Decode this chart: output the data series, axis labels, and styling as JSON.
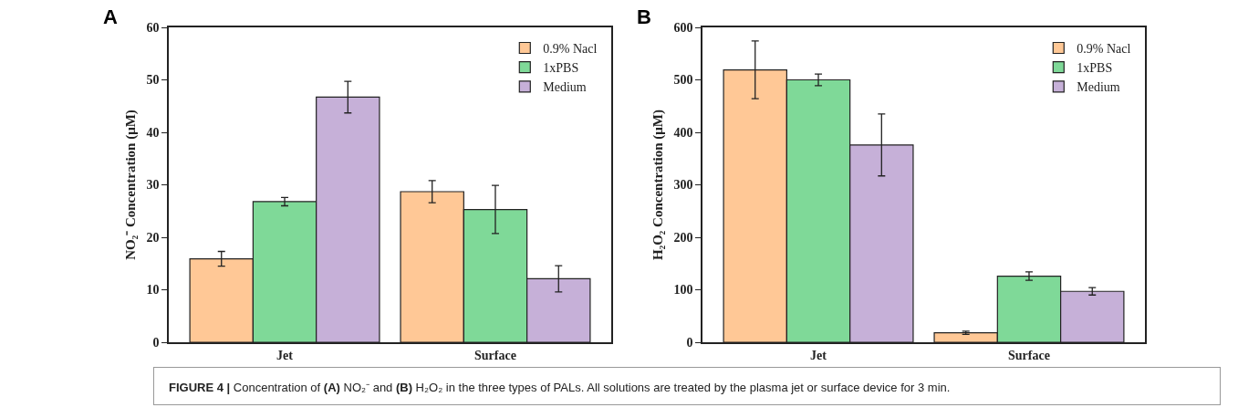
{
  "chart_data": [
    {
      "type": "bar",
      "title": "A",
      "ylabel": "NO₂⁻ Concentration (μM)",
      "categories": [
        "Jet",
        "Surface"
      ],
      "series": [
        {
          "name": "0.9% Nacl",
          "color": "#ffc896",
          "values": [
            15.9,
            28.7
          ],
          "errors": [
            1.4,
            2.1
          ]
        },
        {
          "name": "1xPBS",
          "color": "#7fd998",
          "values": [
            26.8,
            25.3
          ],
          "errors": [
            0.8,
            4.6
          ]
        },
        {
          "name": "Medium",
          "color": "#c6b0d8",
          "values": [
            46.7,
            12.1
          ],
          "errors": [
            3,
            2.5
          ]
        }
      ],
      "ylim": [
        0,
        60
      ],
      "yticks": [
        0,
        10,
        20,
        30,
        40,
        50,
        60
      ],
      "grid": false,
      "legend": "top right",
      "annotations": [
        "FIGURE 4 | Concentration of (A) NO₂⁻ and (B) H₂O₂ in the three types of PALs. All solutions are treated by the plasma jet or surface device for 3 min."
      ]
    },
    {
      "type": "bar",
      "title": "B",
      "ylabel": "H₂O₂ Concentration (μM)",
      "categories": [
        "Jet",
        "Surface"
      ],
      "series": [
        {
          "name": "0.9% Nacl",
          "color": "#ffc896",
          "values": [
            519,
            18
          ],
          "errors": [
            55,
            3
          ]
        },
        {
          "name": "1xPBS",
          "color": "#7fd998",
          "values": [
            500,
            126
          ],
          "errors": [
            11,
            8
          ]
        },
        {
          "name": "Medium",
          "color": "#c6b0d8",
          "values": [
            376,
            97
          ],
          "errors": [
            59,
            7
          ]
        }
      ],
      "ylim": [
        0,
        600
      ],
      "yticks": [
        0,
        100,
        200,
        300,
        400,
        500,
        600
      ],
      "grid": false,
      "legend": "top right"
    }
  ]
}
